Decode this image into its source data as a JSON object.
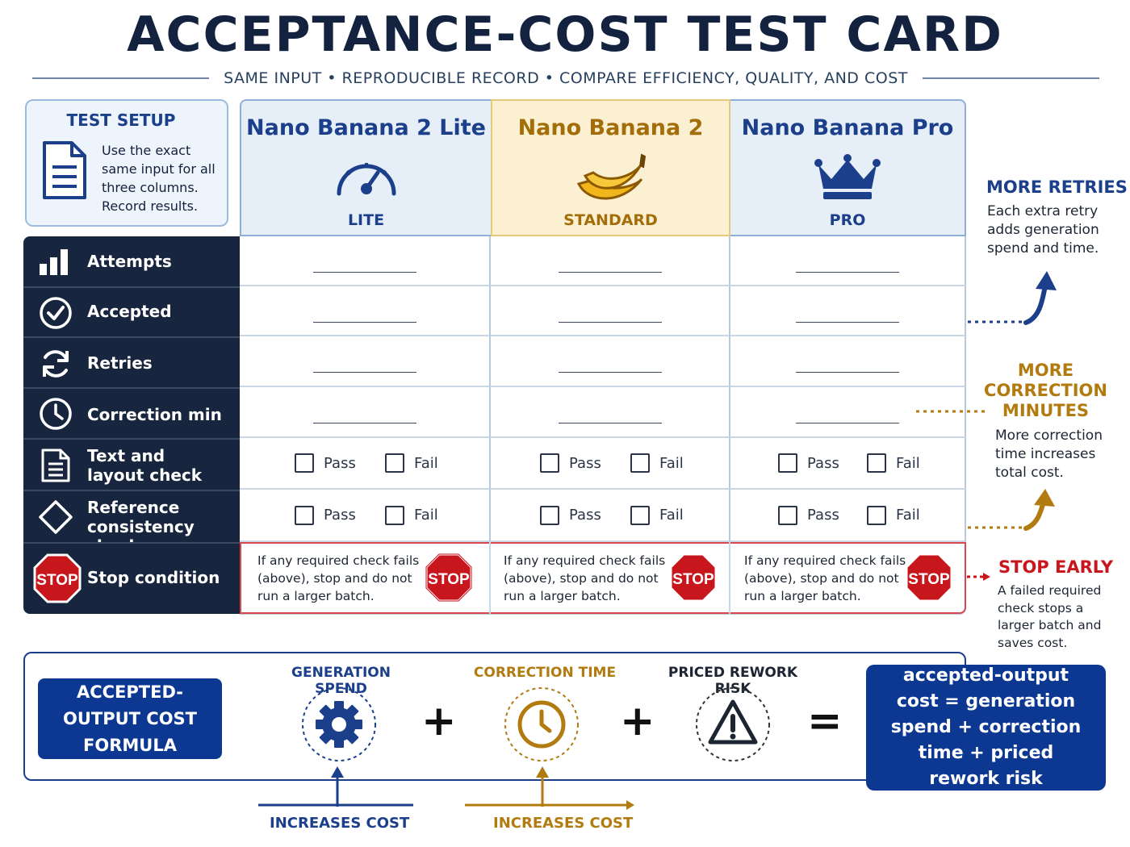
{
  "title": "ACCEPTANCE-COST TEST CARD",
  "subtitle": "SAME INPUT  •  REPRODUCIBLE RECORD  •  COMPARE EFFICIENCY, QUALITY, AND COST",
  "setup": {
    "title": "TEST SETUP",
    "text": "Use the exact same input for all three columns. Record results."
  },
  "columns": [
    {
      "name": "Nano Banana 2 Lite",
      "tier": "LITE",
      "icon": "speedometer-icon"
    },
    {
      "name": "Nano Banana 2",
      "tier": "STANDARD",
      "icon": "banana-icon"
    },
    {
      "name": "Nano Banana Pro",
      "tier": "PRO",
      "icon": "crown-icon"
    }
  ],
  "rows": [
    {
      "label": "Attempts",
      "icon": "bar-chart-icon"
    },
    {
      "label": "Accepted",
      "icon": "check-circle-icon"
    },
    {
      "label": "Retries",
      "icon": "refresh-icon"
    },
    {
      "label": "Correction min",
      "icon": "clock-icon"
    },
    {
      "label": "Text and layout check",
      "icon": "document-icon"
    },
    {
      "label": "Reference consistency check",
      "icon": "diamond-icon"
    },
    {
      "label": "Stop condition",
      "icon": "stop-sign-icon"
    }
  ],
  "checks": {
    "pass": "Pass",
    "fail": "Fail"
  },
  "stop_sign_text": "STOP",
  "stop_text": "If any required check fails (above), stop and do not run a larger batch.",
  "notes": {
    "retries": {
      "title": "MORE RETRIES",
      "body": "Each extra retry adds generation spend and time."
    },
    "correction": {
      "title": "MORE CORRECTION MINUTES",
      "body": "More correction time increases total cost."
    },
    "stop": {
      "title": "STOP EARLY",
      "body": "A failed required check stops a larger batch and saves cost."
    }
  },
  "formula": {
    "label": "ACCEPTED-OUTPUT COST FORMULA",
    "terms": [
      "GENERATION SPEND",
      "CORRECTION TIME",
      "PRICED REWORK RISK"
    ],
    "plus": "+",
    "equals": "=",
    "result": "accepted-output cost = generation spend + correction time + priced rework risk",
    "increases": "INCREASES COST"
  },
  "colors": {
    "navy": "#17253e",
    "blue": "#1b3f8a",
    "gold": "#b27b0f",
    "red": "#c8161d",
    "lite_bg": "#e6eef8",
    "standard_bg": "#fcf0d2",
    "pro_bg": "#e6eef8"
  }
}
